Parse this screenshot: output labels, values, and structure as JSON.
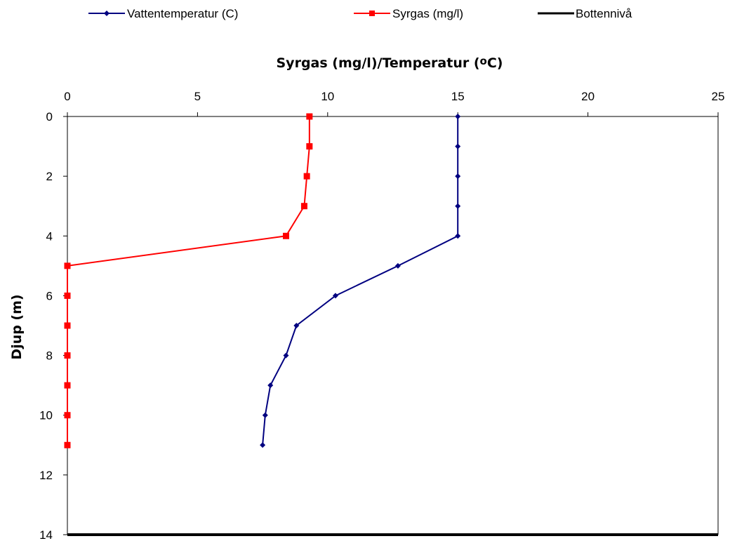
{
  "chart_data": {
    "type": "line",
    "x_axis_title": "Syrgas (mg/l)/Temperatur (",
    "x_axis_title_suffix": "C)",
    "x_axis_title_degree": "o",
    "y_axis_title": "Djup (m)",
    "x_ticks": [
      "0",
      "5",
      "10",
      "15",
      "20",
      "25"
    ],
    "y_ticks": [
      "0",
      "2",
      "4",
      "6",
      "8",
      "10",
      "12",
      "14"
    ],
    "xlim": [
      0,
      25
    ],
    "ylim": [
      0,
      14
    ],
    "y_reversed": true,
    "x_axis_position": "top",
    "grid": false,
    "legend_position": "top",
    "series": [
      {
        "name": "Vattentemperatur (C)",
        "color": "#000080",
        "marker": "diamond",
        "depth": [
          0,
          1,
          2,
          3,
          4,
          5,
          6,
          7,
          8,
          9,
          10,
          11
        ],
        "values": [
          15.0,
          15.0,
          15.0,
          15.0,
          15.0,
          12.7,
          10.3,
          8.8,
          8.4,
          7.8,
          7.6,
          7.5
        ]
      },
      {
        "name": "Syrgas (mg/l)",
        "color": "#ff0000",
        "marker": "square",
        "depth": [
          0,
          1,
          2,
          3,
          4,
          5,
          6,
          7,
          8,
          9,
          10,
          11
        ],
        "values": [
          9.3,
          9.3,
          9.2,
          9.1,
          8.4,
          0,
          0,
          0,
          0,
          0,
          0,
          0
        ]
      },
      {
        "name": "Bottennivå",
        "color": "#000000",
        "marker": "none",
        "depth": [
          14,
          14
        ],
        "values": [
          0,
          25
        ]
      }
    ]
  }
}
